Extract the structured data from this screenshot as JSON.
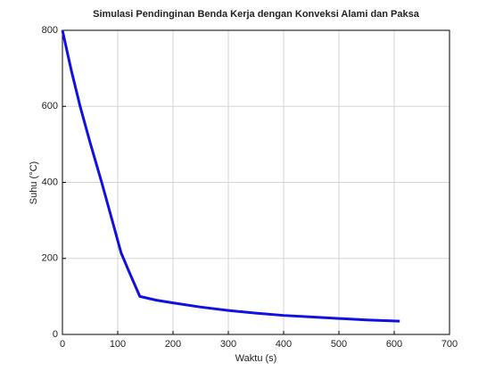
{
  "chart_data": {
    "type": "line",
    "title": "Simulasi Pendinginan Benda Kerja dengan Konveksi Alami dan Paksa",
    "x_label": "Waktu (s)",
    "y_label": "Suhu (°C)",
    "x": [
      0,
      16,
      32,
      50,
      71,
      90,
      106,
      122,
      140,
      170,
      200,
      250,
      300,
      350,
      400,
      450,
      500,
      550,
      610
    ],
    "series": [
      {
        "name": "Suhu",
        "color": "#1010e0",
        "values": [
          800,
          695,
          600,
          505,
          400,
          300,
          215,
          160,
          100,
          90,
          83,
          72,
          63,
          56,
          50,
          46,
          42,
          38,
          35
        ]
      }
    ],
    "xlim": [
      0,
      700
    ],
    "xticks": [
      0,
      100,
      200,
      300,
      400,
      500,
      600,
      700
    ],
    "ylim": [
      0,
      800
    ],
    "yticks": [
      0,
      200,
      400,
      600,
      800
    ],
    "grid": true
  }
}
